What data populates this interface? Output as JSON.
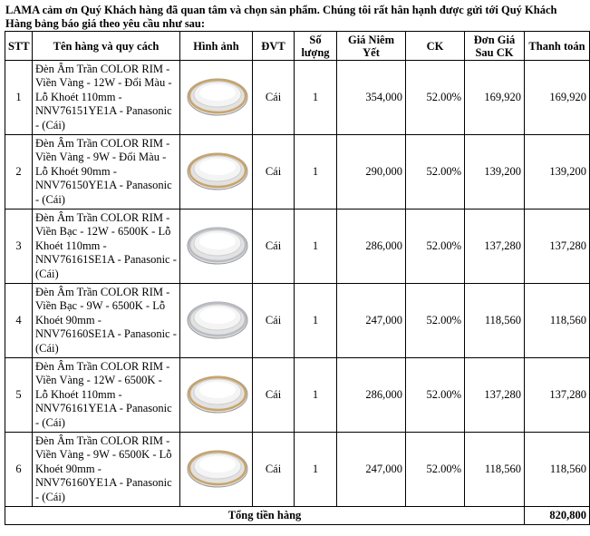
{
  "intro": "LAMA cảm ơn Quý Khách hàng đã quan tâm và chọn sản phẩm. Chúng tôi rất hân hạnh được gửi tới Quý Khách Hàng bảng báo giá theo yêu cầu như sau:",
  "headers": {
    "stt": "STT",
    "name": "Tên hàng và quy cách",
    "image": "Hình ảnh",
    "unit": "ĐVT",
    "qty": "Số lượng",
    "list_price": "Giá Niêm Yết",
    "discount": "CK",
    "net_price": "Đơn Giá Sau CK",
    "total": "Thanh toán"
  },
  "rows": [
    {
      "stt": "1",
      "name": "Đèn Âm Trần COLOR RIM - Viền Vàng - 12W - Đổi Màu - Lỗ Khoét 110mm - NNV76151YE1A - Panasonic - (Cái)",
      "image": "gold-rim-downlight",
      "unit": "Cái",
      "qty": "1",
      "list_price": "354,000",
      "discount": "52.00%",
      "net_price": "169,920",
      "total": "169,920"
    },
    {
      "stt": "2",
      "name": "Đèn Âm Trần COLOR RIM - Viền Vàng - 9W - Đổi Màu - Lỗ Khoét 90mm - NNV76150YE1A - Panasonic - (Cái)",
      "image": "gold-rim-downlight",
      "unit": "Cái",
      "qty": "1",
      "list_price": "290,000",
      "discount": "52.00%",
      "net_price": "139,200",
      "total": "139,200"
    },
    {
      "stt": "3",
      "name": "Đèn Âm Trần COLOR RIM - Viền Bạc - 12W - 6500K - Lỗ Khoét 110mm - NNV76161SE1A - Panasonic - (Cái)",
      "image": "silver-rim-downlight",
      "unit": "Cái",
      "qty": "1",
      "list_price": "286,000",
      "discount": "52.00%",
      "net_price": "137,280",
      "total": "137,280"
    },
    {
      "stt": "4",
      "name": "Đèn Âm Trần COLOR RIM - Viền Bạc - 9W - 6500K - Lỗ Khoét 90mm - NNV76160SE1A - Panasonic - (Cái)",
      "image": "silver-rim-downlight",
      "unit": "Cái",
      "qty": "1",
      "list_price": "247,000",
      "discount": "52.00%",
      "net_price": "118,560",
      "total": "118,560"
    },
    {
      "stt": "5",
      "name": "Đèn Âm Trần COLOR RIM - Viền Vàng - 12W - 6500K - Lỗ Khoét 110mm - NNV76161YE1A - Panasonic - (Cái)",
      "image": "gold-rim-downlight",
      "unit": "Cái",
      "qty": "1",
      "list_price": "286,000",
      "discount": "52.00%",
      "net_price": "137,280",
      "total": "137,280"
    },
    {
      "stt": "6",
      "name": "Đèn Âm Trần COLOR RIM - Viền Vàng - 9W - 6500K - Lỗ Khoét 90mm - NNV76160YE1A - Panasonic - (Cái)",
      "image": "gold-rim-downlight",
      "unit": "Cái",
      "qty": "1",
      "list_price": "247,000",
      "discount": "52.00%",
      "net_price": "118,560",
      "total": "118,560"
    }
  ],
  "total_label": "Tổng tiền hàng",
  "total_value": "820,800",
  "colors": {
    "gold_rim": "#c9a46a",
    "silver_rim": "#b8bcc2",
    "lamp_face": "#f4f4f4",
    "border": "#000000"
  }
}
